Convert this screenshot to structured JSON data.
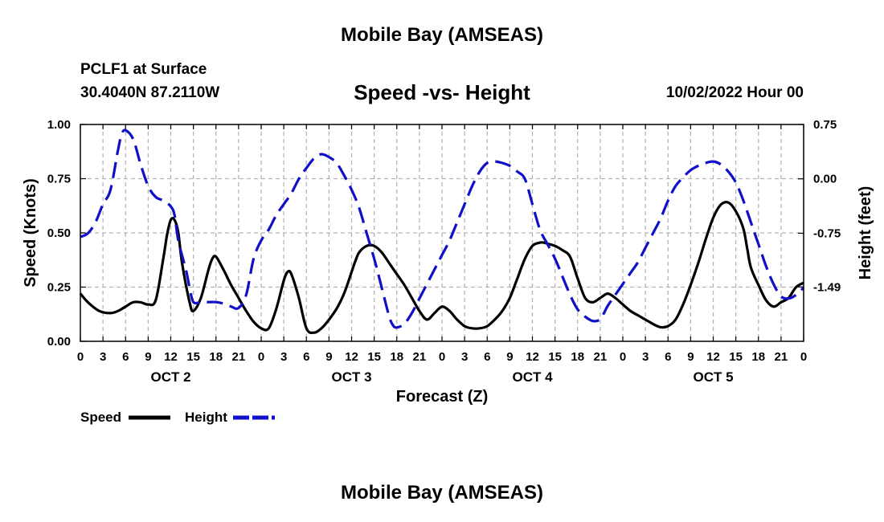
{
  "header": {
    "title": "Mobile Bay (AMSEAS)",
    "station": "PCLF1 at Surface",
    "coords": "30.4040N  87.2110W",
    "timestamp": "10/02/2022 Hour 00"
  },
  "footer": {
    "title": "Mobile Bay (AMSEAS)"
  },
  "colors": {
    "speed": "#000000",
    "height": "#1010c8",
    "grid": "#b4b4b4"
  },
  "chart_data": {
    "type": "line",
    "title": "Speed -vs- Height",
    "xlabel": "Forecast (Z)",
    "ylabel": "Speed (Knots)",
    "y2label": "Height (feet)",
    "x_tick_labels": [
      "0",
      "3",
      "6",
      "9",
      "12",
      "15",
      "18",
      "21",
      "0",
      "3",
      "6",
      "9",
      "12",
      "15",
      "18",
      "21",
      "0",
      "3",
      "6",
      "9",
      "12",
      "15",
      "18",
      "21",
      "0",
      "3",
      "6",
      "9",
      "12",
      "15",
      "18",
      "21",
      "0"
    ],
    "day_labels": [
      {
        "label": "OCT 2",
        "hour": 12
      },
      {
        "label": "OCT 3",
        "hour": 36
      },
      {
        "label": "OCT 4",
        "hour": 60
      },
      {
        "label": "OCT 5",
        "hour": 84
      }
    ],
    "xlim": [
      0,
      96
    ],
    "ylim": [
      0,
      1.0
    ],
    "y_ticks": [
      "0.00",
      "0.25",
      "0.50",
      "0.75",
      "1.00"
    ],
    "y2_ticks": [
      "-1.49",
      "-0.75",
      "0.00",
      "0.75"
    ],
    "y2lim": [
      -2.24,
      0.75
    ],
    "legend": [
      {
        "name": "Speed",
        "style": "solid"
      },
      {
        "name": "Height",
        "style": "dashed"
      }
    ],
    "series": [
      {
        "name": "Speed",
        "axis": "left",
        "x": [
          0,
          1,
          2.5,
          4,
          5,
          6,
          7,
          8,
          9,
          10,
          11,
          11.5,
          12,
          12.5,
          13,
          13.5,
          14.5,
          15,
          16,
          17,
          17.5,
          18,
          19,
          20,
          21,
          22,
          23,
          24,
          25,
          26,
          27,
          27.5,
          28,
          29,
          30,
          31,
          32,
          33,
          34,
          35,
          36,
          36.5,
          37,
          38,
          39,
          40,
          41,
          42,
          43,
          44,
          45,
          46,
          47,
          48,
          49,
          50,
          51,
          52,
          53,
          54,
          55,
          56,
          57,
          58,
          59,
          60,
          61,
          61.5,
          62,
          63,
          64,
          65,
          66,
          67,
          68,
          69,
          70,
          71,
          72,
          73,
          74,
          75,
          76,
          77,
          78,
          79,
          80,
          81,
          82,
          83,
          84,
          85,
          86,
          87,
          88,
          88.5,
          89,
          90,
          91,
          92,
          93,
          94,
          95,
          96
        ],
        "values": [
          0.22,
          0.18,
          0.14,
          0.13,
          0.14,
          0.16,
          0.18,
          0.18,
          0.17,
          0.19,
          0.38,
          0.49,
          0.56,
          0.56,
          0.5,
          0.36,
          0.18,
          0.14,
          0.2,
          0.33,
          0.38,
          0.39,
          0.33,
          0.26,
          0.2,
          0.14,
          0.09,
          0.06,
          0.06,
          0.15,
          0.28,
          0.32,
          0.31,
          0.2,
          0.06,
          0.04,
          0.06,
          0.1,
          0.15,
          0.22,
          0.32,
          0.37,
          0.41,
          0.44,
          0.44,
          0.41,
          0.36,
          0.31,
          0.26,
          0.2,
          0.14,
          0.1,
          0.13,
          0.16,
          0.14,
          0.1,
          0.07,
          0.06,
          0.06,
          0.07,
          0.1,
          0.14,
          0.2,
          0.29,
          0.38,
          0.44,
          0.455,
          0.455,
          0.45,
          0.44,
          0.42,
          0.39,
          0.29,
          0.2,
          0.18,
          0.2,
          0.22,
          0.2,
          0.17,
          0.14,
          0.12,
          0.1,
          0.08,
          0.065,
          0.07,
          0.1,
          0.17,
          0.26,
          0.36,
          0.47,
          0.57,
          0.63,
          0.64,
          0.6,
          0.52,
          0.43,
          0.34,
          0.26,
          0.19,
          0.16,
          0.18,
          0.2,
          0.25,
          0.27
        ]
      },
      {
        "name": "Height",
        "axis": "right",
        "x": [
          0,
          1,
          2,
          3,
          4,
          5,
          5.5,
          6,
          7,
          8,
          9,
          10,
          11,
          12,
          12.5,
          13,
          14,
          14.5,
          15,
          16,
          17,
          18,
          19,
          20,
          21,
          22,
          23,
          24,
          25,
          26,
          27,
          28,
          29,
          30,
          31,
          32,
          33,
          34,
          35,
          36,
          37,
          38,
          39,
          40,
          41,
          41.5,
          42,
          43,
          44,
          45,
          46,
          47,
          48,
          49,
          50,
          51,
          52,
          53,
          54,
          55,
          56,
          57,
          58,
          59,
          60,
          61,
          62,
          63,
          64,
          65,
          66,
          67,
          68,
          69,
          69.5,
          70,
          71,
          72,
          73,
          74,
          75,
          76,
          77,
          78,
          79,
          80,
          81,
          82,
          83,
          84,
          85,
          86,
          87,
          88,
          89,
          90,
          91,
          92,
          93,
          94,
          95,
          96
        ],
        "values": [
          -0.8,
          -0.75,
          -0.6,
          -0.35,
          -0.15,
          0.4,
          0.62,
          0.67,
          0.55,
          0.2,
          -0.1,
          -0.25,
          -0.3,
          -0.38,
          -0.5,
          -0.85,
          -1.25,
          -1.5,
          -1.7,
          -1.7,
          -1.7,
          -1.7,
          -1.72,
          -1.76,
          -1.78,
          -1.6,
          -1.1,
          -0.85,
          -0.7,
          -0.5,
          -0.35,
          -0.2,
          0.0,
          0.15,
          0.28,
          0.34,
          0.3,
          0.22,
          0.05,
          -0.15,
          -0.4,
          -0.75,
          -1.1,
          -1.5,
          -1.9,
          -2.02,
          -2.05,
          -2.0,
          -1.85,
          -1.65,
          -1.45,
          -1.25,
          -1.05,
          -0.85,
          -0.6,
          -0.35,
          -0.1,
          0.1,
          0.22,
          0.24,
          0.22,
          0.18,
          0.1,
          0.0,
          -0.35,
          -0.7,
          -0.9,
          -1.1,
          -1.35,
          -1.6,
          -1.8,
          -1.9,
          -1.96,
          -1.94,
          -1.85,
          -1.75,
          -1.6,
          -1.45,
          -1.3,
          -1.15,
          -0.95,
          -0.75,
          -0.55,
          -0.3,
          -0.1,
          0.02,
          0.12,
          0.18,
          0.22,
          0.24,
          0.2,
          0.1,
          -0.05,
          -0.3,
          -0.6,
          -0.9,
          -1.2,
          -1.45,
          -1.62,
          -1.65,
          -1.6,
          -1.5
        ]
      }
    ]
  }
}
